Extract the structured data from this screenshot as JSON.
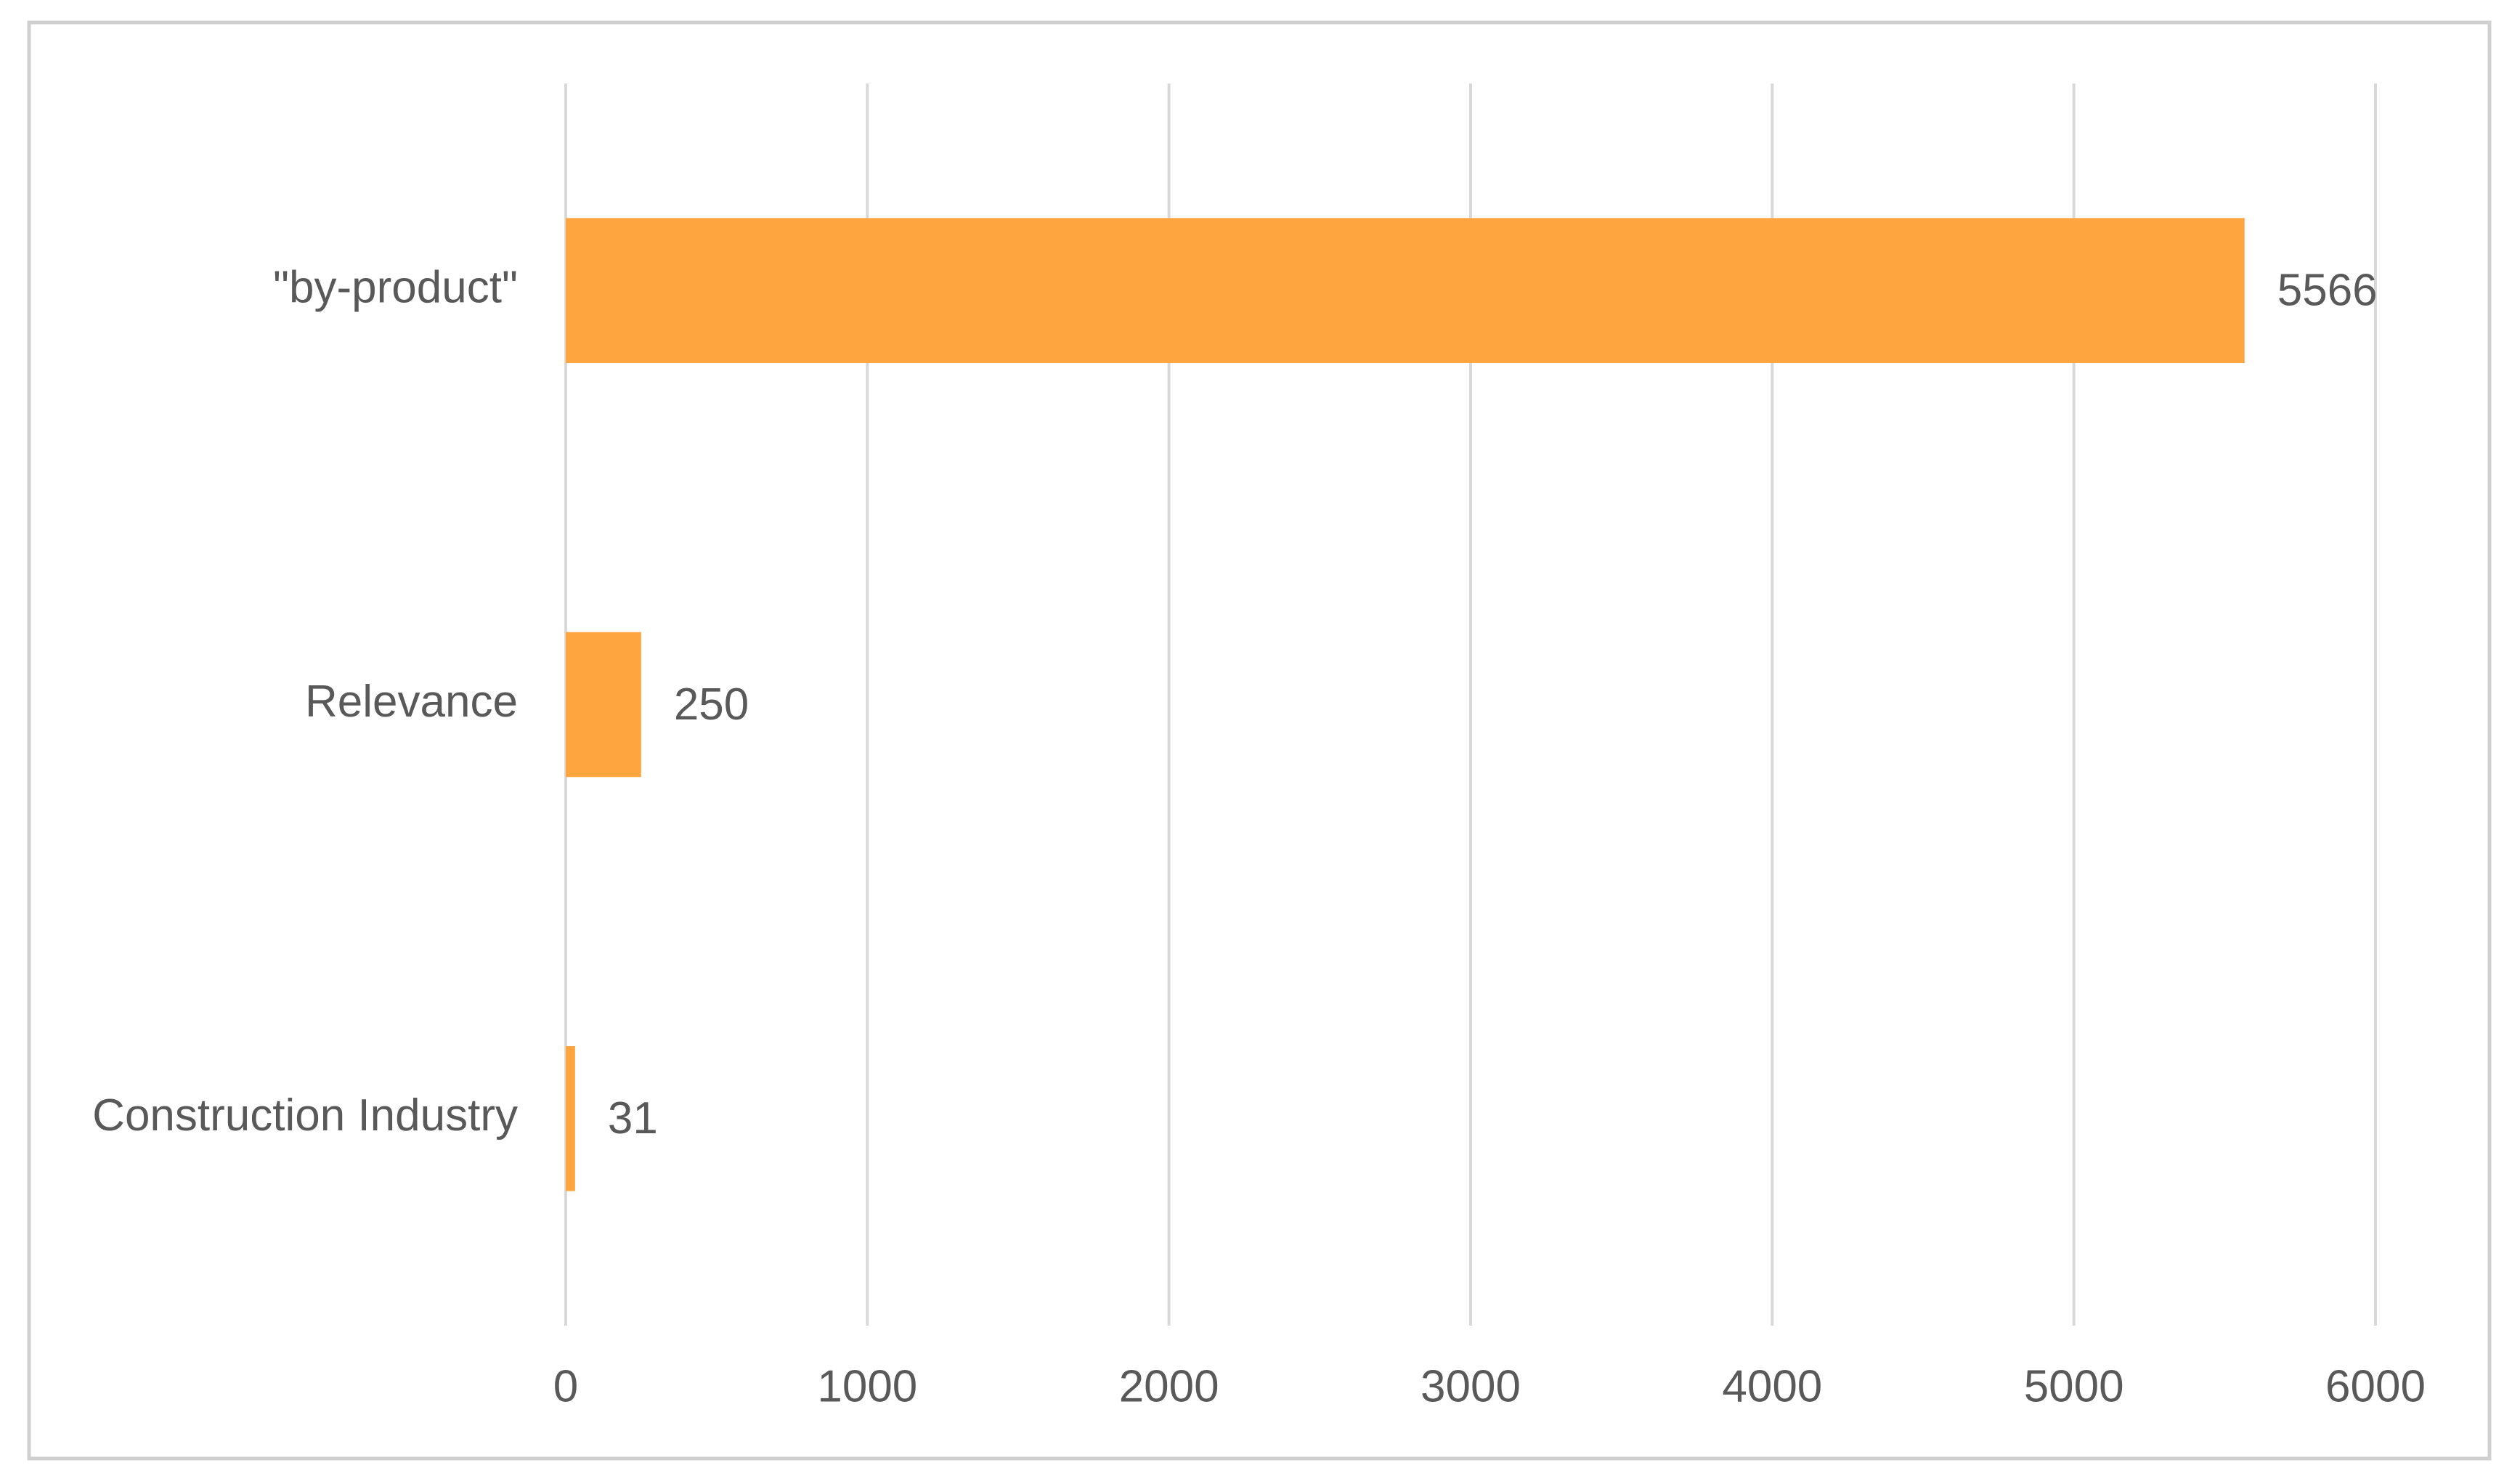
{
  "chart_data": {
    "type": "bar",
    "orientation": "horizontal",
    "categories": [
      "\"by-product\"",
      "Relevance",
      "Construction Industry"
    ],
    "values": [
      5566,
      250,
      31
    ],
    "color": "#FFA53F",
    "xlim": [
      0,
      6000
    ],
    "xticks": [
      0,
      1000,
      2000,
      3000,
      4000,
      5000,
      6000
    ],
    "grid": true
  }
}
